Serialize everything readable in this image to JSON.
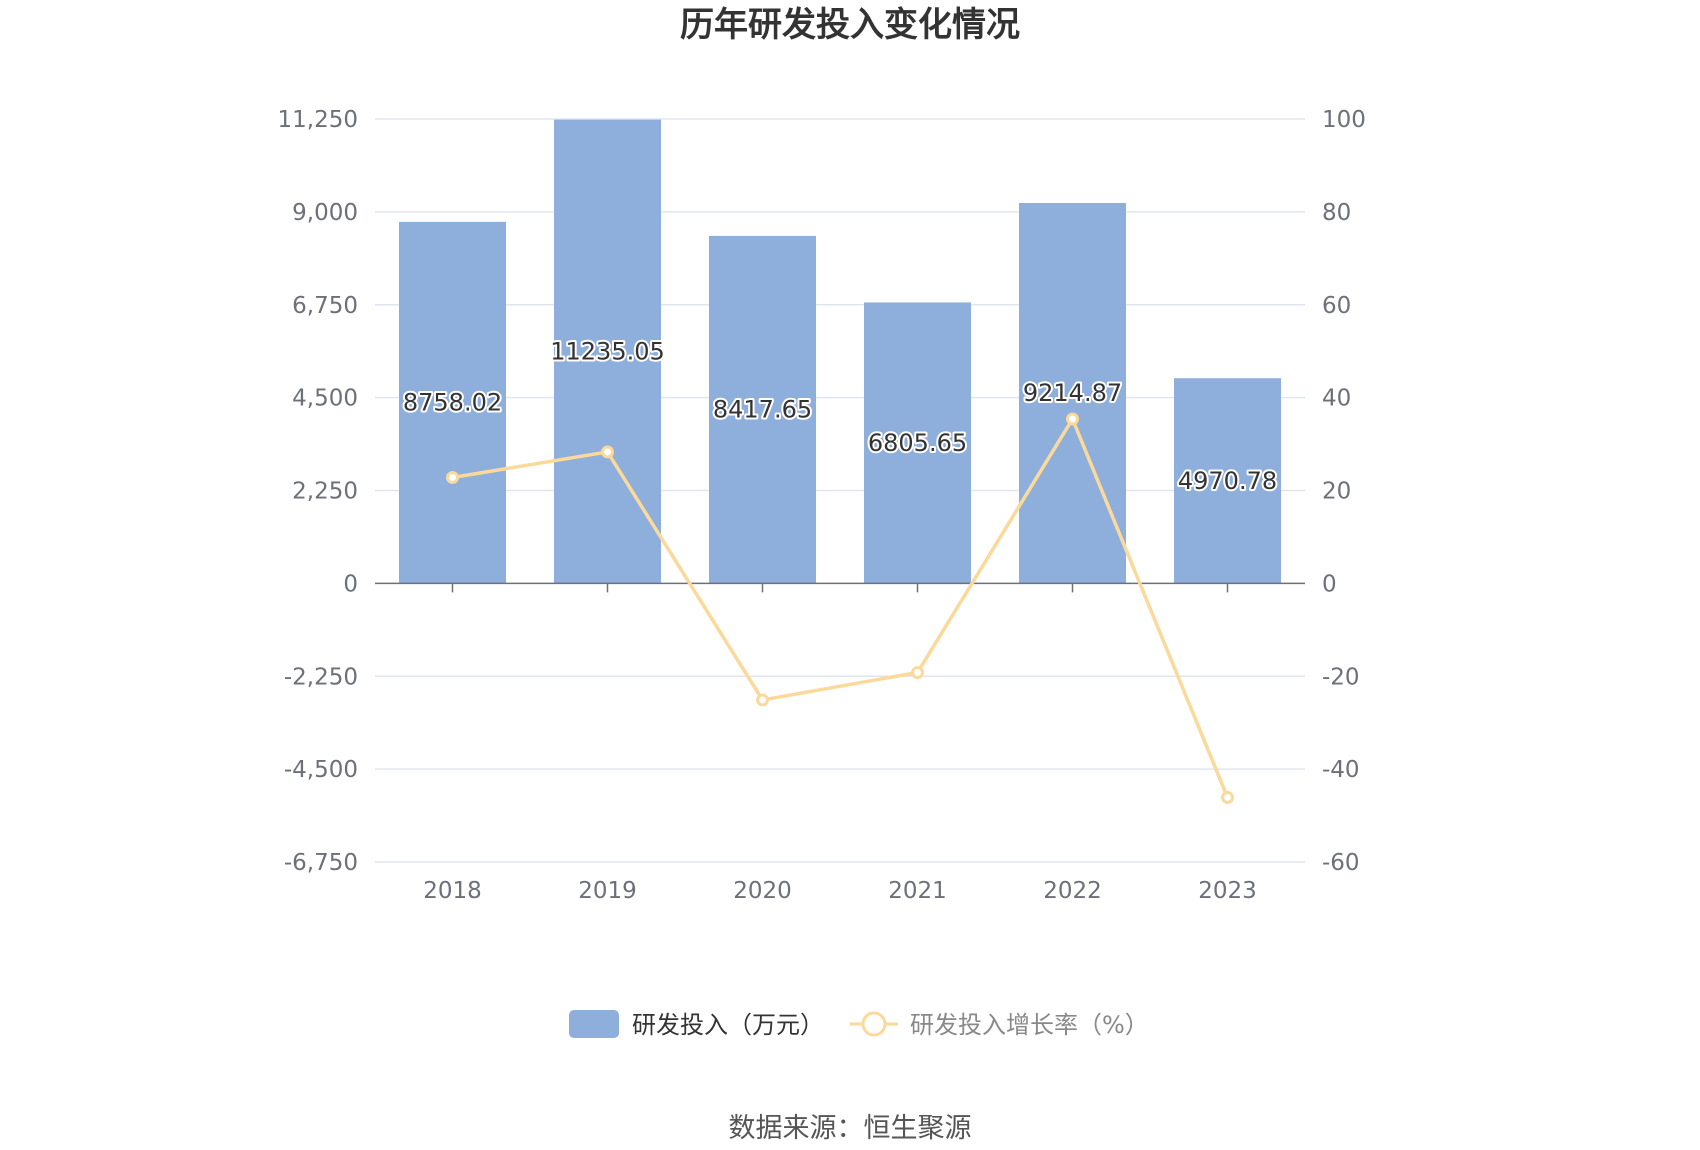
{
  "title": "历年研发投入变化情况",
  "source": "数据来源：恒生聚源",
  "chart_data": {
    "type": "bar",
    "categories": [
      "2018",
      "2019",
      "2020",
      "2021",
      "2022",
      "2023"
    ],
    "series": [
      {
        "name": "研发投入（万元）",
        "type": "bar",
        "axis": "left",
        "color": "#8eaedb",
        "values": [
          8758.02,
          11235.05,
          8417.65,
          6805.65,
          9214.87,
          4970.78
        ],
        "labels": [
          "8758.02",
          "11235.05",
          "8417.65",
          "6805.65",
          "9214.87",
          "4970.78"
        ]
      },
      {
        "name": "研发投入增长率（%）",
        "type": "line",
        "axis": "right",
        "color": "#fbd99a",
        "values": [
          22.8,
          28.3,
          -25.1,
          -19.2,
          35.4,
          -46.1
        ]
      }
    ],
    "y_left": {
      "min": -6750,
      "max": 11250,
      "ticks": [
        11250,
        9000,
        6750,
        4500,
        2250,
        0,
        -2250,
        -4500,
        -6750
      ],
      "tick_labels": [
        "11,250",
        "9,000",
        "6,750",
        "4,500",
        "2,250",
        "0",
        "-2,250",
        "-4,500",
        "-6,750"
      ]
    },
    "y_right": {
      "min": -60,
      "max": 100,
      "ticks": [
        100,
        80,
        60,
        40,
        20,
        0,
        -20,
        -40,
        -60
      ],
      "tick_labels": [
        "100",
        "80",
        "60",
        "40",
        "20",
        "0",
        "-20",
        "-40",
        "-60"
      ]
    },
    "grid": true,
    "legend_position": "bottom-center"
  }
}
